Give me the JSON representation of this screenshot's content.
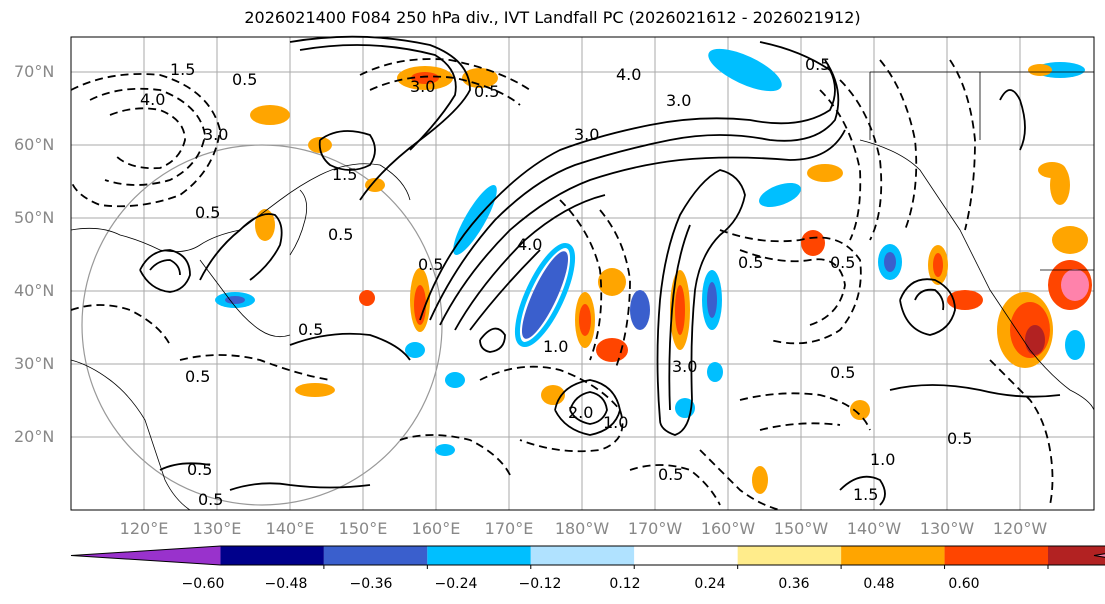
{
  "title": "2026021400 F084 250 hPa div., IVT Landfall PC (2026021612 - 2026021912)",
  "lat_labels": [
    "70°N",
    "60°N",
    "50°N",
    "40°N",
    "30°N",
    "20°N"
  ],
  "lon_labels": [
    "120°E",
    "130°E",
    "140°E",
    "150°E",
    "160°E",
    "170°E",
    "180°W",
    "170°W",
    "160°W",
    "150°W",
    "140°W",
    "130°W",
    "120°W"
  ],
  "contour_labels": [
    "1.5",
    "0.5",
    "4.0",
    "3.0",
    "0.5",
    "3.0",
    "4.0",
    "3.0",
    "0.5",
    "1.5",
    "0.5",
    "0.5",
    "0.5",
    "4.0",
    "3.0",
    "0.5",
    "0.5",
    "0.5",
    "1.0",
    "3.0",
    "2.0",
    "1.0",
    "0.5",
    "0.5",
    "1.5",
    "0.5",
    "0.5",
    "0.5",
    "1.0",
    "0.5"
  ],
  "colorbar": {
    "colors": [
      "#9932cc",
      "#00008b",
      "#3a5fcd",
      "#00bfff",
      "#b0e2ff",
      "#ffffff",
      "#ffec8b",
      "#ffa500",
      "#ff4500",
      "#b22222",
      "#ff82ab"
    ],
    "ticks": [
      "−0.60",
      "−0.48",
      "−0.36",
      "−0.24",
      "−0.12",
      "0.12",
      "0.24",
      "0.36",
      "0.48",
      "0.60"
    ]
  },
  "chart_data": {
    "type": "map",
    "title": "2026021400 F084 250 hPa div., IVT Landfall PC (2026021612 - 2026021912)",
    "variable_shaded": "250 hPa divergence",
    "variable_contoured": "IVT Landfall PC",
    "lat_range": [
      10,
      75
    ],
    "lon_range": [
      110,
      250
    ],
    "shading_levels": [
      -0.6,
      -0.48,
      -0.36,
      -0.24,
      -0.12,
      0.12,
      0.24,
      0.36,
      0.48,
      0.6
    ]
  }
}
